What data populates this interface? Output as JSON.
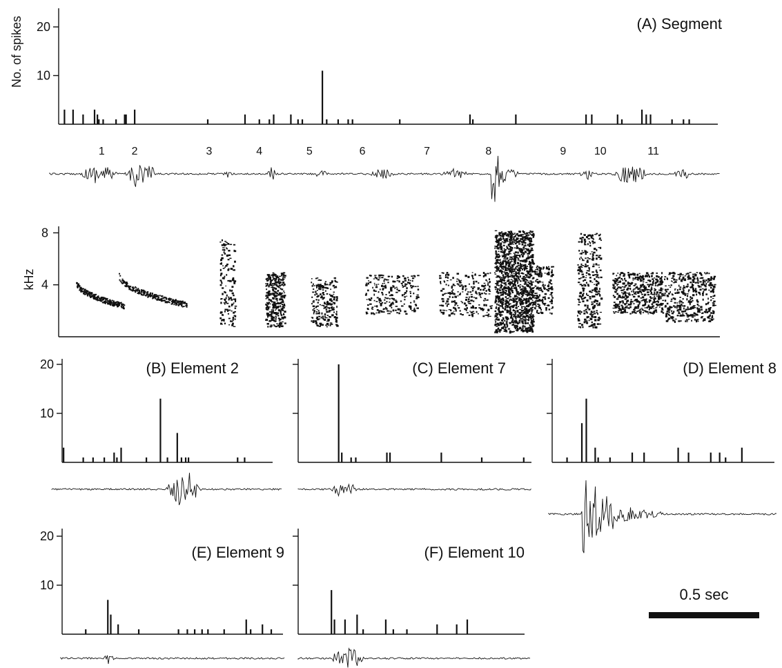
{
  "chart_data": [
    {
      "id": "A",
      "type": "bar",
      "title": "(A) Segment",
      "ylabel": "No. of spikes",
      "ylim": [
        0,
        24
      ],
      "yticks": [
        10,
        20
      ],
      "x": [
        0.04,
        0.1,
        0.17,
        0.25,
        0.27,
        0.28,
        0.31,
        0.4,
        0.46,
        0.47,
        0.53,
        1.04,
        1.3,
        1.4,
        1.47,
        1.5,
        1.62,
        1.67,
        1.7,
        1.84,
        1.87,
        1.95,
        2.02,
        2.05,
        2.38,
        2.87,
        2.89,
        3.19,
        3.68,
        3.72,
        3.9,
        3.93,
        4.07,
        4.1,
        4.13,
        4.28,
        4.36,
        4.4
      ],
      "values": [
        3,
        3,
        2,
        3,
        2,
        1,
        1,
        1,
        2,
        2,
        3,
        1,
        2,
        1,
        1,
        2,
        2,
        1,
        1,
        11,
        1,
        1,
        1,
        1,
        1,
        2,
        1,
        2,
        2,
        2,
        2,
        1,
        3,
        2,
        2,
        1,
        1,
        1
      ],
      "xlim": [
        0,
        4.6
      ],
      "elements": [
        {
          "label": "1",
          "x": 0.3
        },
        {
          "label": "2",
          "x": 0.53
        },
        {
          "label": "3",
          "x": 1.05
        },
        {
          "label": "4",
          "x": 1.4
        },
        {
          "label": "5",
          "x": 1.75
        },
        {
          "label": "6",
          "x": 2.12
        },
        {
          "label": "7",
          "x": 2.57
        },
        {
          "label": "8",
          "x": 3.0
        },
        {
          "label": "9",
          "x": 3.52
        },
        {
          "label": "10",
          "x": 3.78
        },
        {
          "label": "11",
          "x": 4.15
        }
      ]
    },
    {
      "type": "heatmap",
      "ylabel": "kHz",
      "yticks": [
        4,
        8
      ],
      "ylim": [
        0,
        8.5
      ]
    },
    {
      "id": "B",
      "type": "bar",
      "title": "(B) Element 2",
      "yticks": [
        10,
        20
      ],
      "ylim": [
        0,
        21
      ],
      "xlim": [
        0,
        1.5
      ],
      "x": [
        0.01,
        0.15,
        0.22,
        0.3,
        0.37,
        0.39,
        0.42,
        0.6,
        0.7,
        0.75,
        0.82,
        0.85,
        0.88,
        0.9,
        1.25,
        1.3
      ],
      "values": [
        3,
        1,
        1,
        1,
        2,
        1,
        3,
        1,
        13,
        1,
        6,
        1,
        1,
        1,
        1,
        1
      ]
    },
    {
      "id": "C",
      "type": "bar",
      "title": "(C) Element 7",
      "yticks": [
        10,
        20
      ],
      "ylim": [
        0,
        21
      ],
      "xlim": [
        0,
        1.5
      ],
      "x": [
        0.26,
        0.28,
        0.34,
        0.37,
        0.57,
        0.59,
        0.92,
        1.18,
        1.45
      ],
      "values": [
        20,
        2,
        1,
        1,
        2,
        2,
        2,
        1,
        1
      ]
    },
    {
      "id": "D",
      "type": "bar",
      "title": "(D) Element 8",
      "yticks": [
        10,
        20
      ],
      "ylim": [
        0,
        21
      ],
      "xlim": [
        0,
        1.5
      ],
      "x": [
        0.1,
        0.2,
        0.23,
        0.29,
        0.31,
        0.39,
        0.54,
        0.62,
        0.85,
        0.92,
        1.07,
        1.13,
        1.17,
        1.28
      ],
      "values": [
        1,
        8,
        13,
        3,
        1,
        1,
        2,
        2,
        3,
        2,
        2,
        2,
        1,
        3
      ]
    },
    {
      "id": "E",
      "type": "bar",
      "title": "(E) Element 9",
      "yticks": [
        10,
        20
      ],
      "ylim": [
        0,
        21
      ],
      "xlim": [
        0,
        1.5
      ],
      "x": [
        0.16,
        0.31,
        0.33,
        0.38,
        0.52,
        0.79,
        0.85,
        0.9,
        0.95,
        0.99,
        1.1,
        1.25,
        1.28,
        1.36,
        1.42
      ],
      "values": [
        1,
        7,
        4,
        2,
        1,
        1,
        1,
        1,
        1,
        1,
        1,
        3,
        1,
        2,
        1
      ]
    },
    {
      "id": "F",
      "type": "bar",
      "title": "(F) Element 10",
      "yticks": [
        10,
        20
      ],
      "ylim": [
        0,
        21
      ],
      "xlim": [
        0,
        1.5
      ],
      "x": [
        0.22,
        0.24,
        0.31,
        0.39,
        0.43,
        0.58,
        0.63,
        0.72,
        0.92,
        1.05,
        1.12
      ],
      "values": [
        9,
        3,
        3,
        4,
        1,
        3,
        1,
        1,
        2,
        2,
        3
      ]
    }
  ],
  "scale_bar": {
    "label": "0.5 sec",
    "seconds": 0.5
  },
  "colors": {
    "ink": "#111111",
    "paper": "#ffffff"
  }
}
